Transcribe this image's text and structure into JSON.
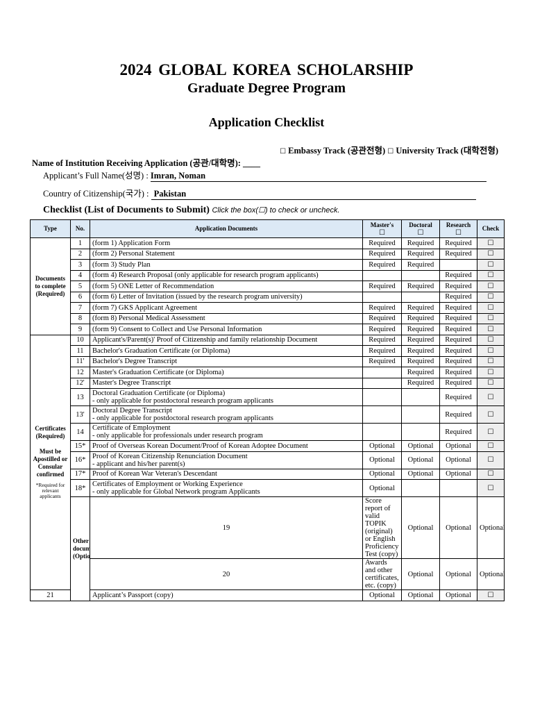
{
  "title": "2024  GLOBAL  KOREA  SCHOLARSHIP",
  "subtitle": "Graduate Degree Program",
  "heading": "Application Checklist",
  "tracks": {
    "box": "☐",
    "embassy": "Embassy Track (공관전형)",
    "university": "University Track (대학전형)"
  },
  "institution": {
    "label": "Name of Institution Receiving Application (공관/대학명):",
    "value": "____"
  },
  "applicant": {
    "label": "Applicant’s Full Name(성명) :",
    "value": "Imran, Noman"
  },
  "country": {
    "label": "Country of Citizenship(국가) :",
    "value": "Pakistan"
  },
  "checklist": {
    "title": "Checklist (List of Documents to Submit)",
    "hint": "Click the box(☐) to check or uncheck."
  },
  "table": {
    "headers": {
      "type": "Type",
      "no": "No.",
      "docs": "Application Documents",
      "masters": "Master's",
      "doctoral": "Doctoral",
      "research": "Research",
      "check": "Check",
      "box": "☐"
    },
    "groups": [
      {
        "label": "Documents to complete (Required)"
      },
      {
        "label": "Certificates (Required)",
        "label2": "Must be Apostilled or Consular confirmed",
        "note": "*Required for relevant applicants"
      },
      {
        "label": "Other documents (Optional)"
      }
    ],
    "rows": [
      {
        "no": "1",
        "doc": "(form 1) Application Form",
        "m": "Required",
        "d": "Required",
        "r": "Required"
      },
      {
        "no": "2",
        "doc": "(form 2) Personal Statement",
        "m": "Required",
        "d": "Required",
        "r": "Required"
      },
      {
        "no": "3",
        "doc": "(form 3) Study Plan",
        "m": "Required",
        "d": "Required",
        "r": ""
      },
      {
        "no": "4",
        "doc": "(form 4) Research Proposal (only applicable for research program applicants)",
        "m": "",
        "d": "",
        "r": "Required"
      },
      {
        "no": "5",
        "doc": "(form 5) ONE Letter of Recommendation",
        "m": "Required",
        "d": "Required",
        "r": "Required"
      },
      {
        "no": "6",
        "doc": "(form 6) Letter of Invitation (issued by the research program university)",
        "m": "",
        "d": "",
        "r": "Required"
      },
      {
        "no": "7",
        "doc": "(form 7) GKS Applicant Agreement",
        "m": "Required",
        "d": "Required",
        "r": "Required"
      },
      {
        "no": "8",
        "doc": "(form 8) Personal Medical Assessment",
        "m": "Required",
        "d": "Required",
        "r": "Required"
      },
      {
        "no": "9",
        "doc": "(form 9) Consent to Collect and Use Personal Information",
        "m": "Required",
        "d": "Required",
        "r": "Required"
      },
      {
        "no": "10",
        "doc": "Applicant's/Parent(s)' Proof of Citizenship and family relationship Document",
        "m": "Required",
        "d": "Required",
        "r": "Required"
      },
      {
        "no": "11",
        "doc": "Bachelor's Graduation Certificate (or Diploma)",
        "m": "Required",
        "d": "Required",
        "r": "Required"
      },
      {
        "no": "11'",
        "doc": "Bachelor's Degree Transcript",
        "m": "Required",
        "d": "Required",
        "r": "Required"
      },
      {
        "no": "12",
        "doc": "Master's Graduation Certificate (or Diploma)",
        "m": "",
        "d": "Required",
        "r": "Required"
      },
      {
        "no": "12'",
        "doc": "Master's Degree Transcript",
        "m": "",
        "d": "Required",
        "r": "Required"
      },
      {
        "no": "13",
        "doc": "Doctoral Graduation Certificate (or Diploma)",
        "doc2": "- only applicable for postdoctoral research program applicants",
        "m": "",
        "d": "",
        "r": "Required"
      },
      {
        "no": "13'",
        "doc": "Doctoral Degree Transcript",
        "doc2": "- only applicable for postdoctoral research program applicants",
        "m": "",
        "d": "",
        "r": "Required"
      },
      {
        "no": "14",
        "doc": "Certificate of Employment",
        "doc2": "- only applicable for professionals under research program",
        "m": "",
        "d": "",
        "r": "Required"
      },
      {
        "no": "15*",
        "doc": "Proof of Overseas Korean Document/Proof of Korean Adoptee Document",
        "m": "Optional",
        "d": "Optional",
        "r": "Optional"
      },
      {
        "no": "16*",
        "doc": "Proof of Korean Citizenship Renunciation Document",
        "doc2": "- applicant and his/her parent(s)",
        "m": "Optional",
        "d": "Optional",
        "r": "Optional"
      },
      {
        "no": "17*",
        "doc": "Proof of Korean War Veteran's Descendant",
        "m": "Optional",
        "d": "Optional",
        "r": "Optional"
      },
      {
        "no": "18*",
        "doc": "Certificates of Employment or Working Experience",
        "doc2": "- only applicable for Global Network program Applicants",
        "m": "Optional",
        "d": "",
        "r": ""
      },
      {
        "no": "19",
        "doc": "Score report of valid TOPIK (original) or English Proficiency Test (copy)",
        "m": "Optional",
        "d": "Optional",
        "r": "Optional"
      },
      {
        "no": "20",
        "doc": "Awards and other certificates, etc. (copy)",
        "m": "Optional",
        "d": "Optional",
        "r": "Optional"
      },
      {
        "no": "21",
        "doc": "Applicant’s Passport (copy)",
        "m": "Optional",
        "d": "Optional",
        "r": "Optional"
      }
    ]
  }
}
